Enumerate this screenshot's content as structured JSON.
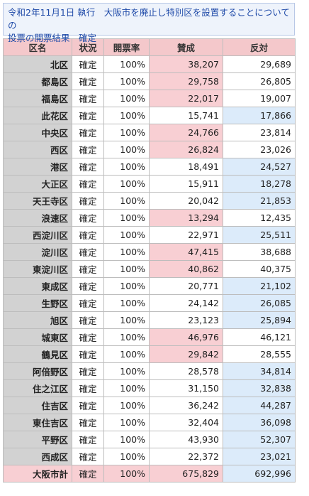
{
  "caption": {
    "line1": "令和2年11月1日 執行　大阪市を廃止し特別区を設置することについての",
    "line2": "投票の開票結果　確定"
  },
  "headers": {
    "ward": "区名",
    "status": "状況",
    "rate": "開票率",
    "yes": "賛成",
    "no": "反対"
  },
  "rows": [
    {
      "ward": "北区",
      "status": "確定",
      "rate": "100%",
      "yes": "38,207",
      "no": "29,689",
      "winner": "yes"
    },
    {
      "ward": "都島区",
      "status": "確定",
      "rate": "100%",
      "yes": "29,758",
      "no": "26,805",
      "winner": "yes"
    },
    {
      "ward": "福島区",
      "status": "確定",
      "rate": "100%",
      "yes": "22,017",
      "no": "19,007",
      "winner": "yes"
    },
    {
      "ward": "此花区",
      "status": "確定",
      "rate": "100%",
      "yes": "15,741",
      "no": "17,866",
      "winner": "no"
    },
    {
      "ward": "中央区",
      "status": "確定",
      "rate": "100%",
      "yes": "24,766",
      "no": "23,814",
      "winner": "yes"
    },
    {
      "ward": "西区",
      "status": "確定",
      "rate": "100%",
      "yes": "26,824",
      "no": "23,026",
      "winner": "yes"
    },
    {
      "ward": "港区",
      "status": "確定",
      "rate": "100%",
      "yes": "18,491",
      "no": "24,527",
      "winner": "no"
    },
    {
      "ward": "大正区",
      "status": "確定",
      "rate": "100%",
      "yes": "15,911",
      "no": "18,278",
      "winner": "no"
    },
    {
      "ward": "天王寺区",
      "status": "確定",
      "rate": "100%",
      "yes": "20,042",
      "no": "21,853",
      "winner": "no"
    },
    {
      "ward": "浪速区",
      "status": "確定",
      "rate": "100%",
      "yes": "13,294",
      "no": "12,435",
      "winner": "yes"
    },
    {
      "ward": "西淀川区",
      "status": "確定",
      "rate": "100%",
      "yes": "22,971",
      "no": "25,511",
      "winner": "no"
    },
    {
      "ward": "淀川区",
      "status": "確定",
      "rate": "100%",
      "yes": "47,415",
      "no": "38,688",
      "winner": "yes"
    },
    {
      "ward": "東淀川区",
      "status": "確定",
      "rate": "100%",
      "yes": "40,862",
      "no": "40,375",
      "winner": "yes"
    },
    {
      "ward": "東成区",
      "status": "確定",
      "rate": "100%",
      "yes": "20,771",
      "no": "21,102",
      "winner": "no"
    },
    {
      "ward": "生野区",
      "status": "確定",
      "rate": "100%",
      "yes": "24,142",
      "no": "26,085",
      "winner": "no"
    },
    {
      "ward": "旭区",
      "status": "確定",
      "rate": "100%",
      "yes": "23,123",
      "no": "25,894",
      "winner": "no"
    },
    {
      "ward": "城東区",
      "status": "確定",
      "rate": "100%",
      "yes": "46,976",
      "no": "46,121",
      "winner": "yes"
    },
    {
      "ward": "鶴見区",
      "status": "確定",
      "rate": "100%",
      "yes": "29,842",
      "no": "28,555",
      "winner": "yes"
    },
    {
      "ward": "阿倍野区",
      "status": "確定",
      "rate": "100%",
      "yes": "28,578",
      "no": "34,814",
      "winner": "no"
    },
    {
      "ward": "住之江区",
      "status": "確定",
      "rate": "100%",
      "yes": "31,150",
      "no": "32,838",
      "winner": "no"
    },
    {
      "ward": "住吉区",
      "status": "確定",
      "rate": "100%",
      "yes": "36,242",
      "no": "44,287",
      "winner": "no"
    },
    {
      "ward": "東住吉区",
      "status": "確定",
      "rate": "100%",
      "yes": "32,404",
      "no": "36,098",
      "winner": "no"
    },
    {
      "ward": "平野区",
      "status": "確定",
      "rate": "100%",
      "yes": "43,930",
      "no": "52,307",
      "winner": "no"
    },
    {
      "ward": "西成区",
      "status": "確定",
      "rate": "100%",
      "yes": "22,372",
      "no": "23,021",
      "winner": "no"
    }
  ],
  "total": {
    "ward": "大阪市計",
    "status": "確定",
    "rate": "100%",
    "yes": "675,829",
    "no": "692,996",
    "winner": "no"
  },
  "colors": {
    "header": "#f4c8cb",
    "yes_win": "#f8cfd3",
    "no_win": "#dcebfa",
    "ward_cell": "#d2d2d2",
    "caption_text": "#1f4aa8"
  }
}
